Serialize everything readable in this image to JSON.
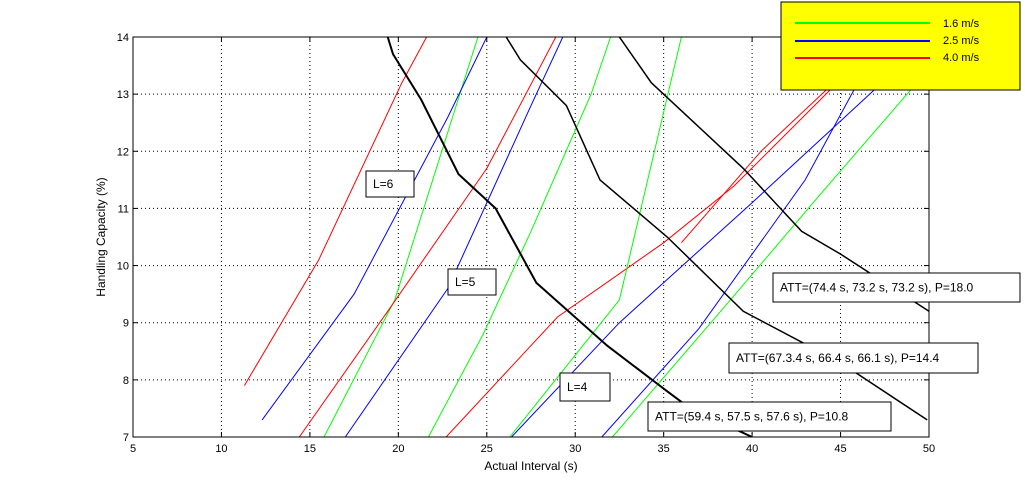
{
  "chart_data": {
    "type": "line",
    "title": "",
    "xlabel": "Actual Interval (s)",
    "ylabel": "Handling Capacity (%)",
    "xlim": [
      5,
      50
    ],
    "ylim": [
      7,
      14
    ],
    "xticks": [
      5,
      10,
      15,
      20,
      25,
      30,
      35,
      40,
      45,
      50
    ],
    "yticks": [
      7,
      8,
      9,
      10,
      11,
      12,
      13,
      14
    ],
    "grid": true,
    "legend": {
      "position": "top-right",
      "background": "#ffff00",
      "entries": [
        {
          "label": "1.6 m/s",
          "color": "#00ff00"
        },
        {
          "label": "2.5 m/s",
          "color": "#0000ff"
        },
        {
          "label": "4.0 m/s",
          "color": "#ff0000"
        }
      ]
    },
    "series": [
      {
        "speed": "1.6 m/s",
        "group": "L=6",
        "color": "#00ff00",
        "points": [
          [
            15.8,
            7.0
          ],
          [
            19.8,
            9.4
          ],
          [
            24.5,
            14.0
          ]
        ]
      },
      {
        "speed": "2.5 m/s",
        "group": "L=6",
        "color": "#0000ff",
        "points": [
          [
            12.3,
            7.3
          ],
          [
            17.5,
            9.5
          ],
          [
            22.8,
            12.6
          ],
          [
            25.0,
            14.0
          ]
        ]
      },
      {
        "speed": "4.0 m/s",
        "group": "L=6",
        "color": "#ff0000",
        "points": [
          [
            11.3,
            7.9
          ],
          [
            15.5,
            10.1
          ],
          [
            20.2,
            13.2
          ],
          [
            21.6,
            14.0
          ]
        ]
      },
      {
        "speed": "1.6 m/s",
        "group": "L=5",
        "color": "#00ff00",
        "points": [
          [
            21.7,
            7.0
          ],
          [
            24.8,
            8.8
          ],
          [
            27.5,
            10.6
          ],
          [
            30.9,
            13.0
          ],
          [
            32.0,
            14.0
          ]
        ]
      },
      {
        "speed": "2.5 m/s",
        "group": "L=5",
        "color": "#0000ff",
        "points": [
          [
            17.0,
            7.0
          ],
          [
            22.8,
            9.6
          ],
          [
            27.5,
            12.8
          ],
          [
            29.3,
            14.0
          ]
        ]
      },
      {
        "speed": "4.0 m/s",
        "group": "L=5",
        "color": "#ff0000",
        "points": [
          [
            14.4,
            7.0
          ],
          [
            19.4,
            9.2
          ],
          [
            25.0,
            11.7
          ],
          [
            28.9,
            14.0
          ]
        ]
      },
      {
        "speed": "1.6 m/s",
        "group": "L=4",
        "color": "#00ff00",
        "points": [
          [
            32.1,
            7.0
          ],
          [
            38.5,
            9.3
          ],
          [
            44.0,
            11.3
          ],
          [
            49.6,
            13.3
          ]
        ]
      },
      {
        "speed": "2.5 m/s",
        "group": "L=4",
        "color": "#0000ff",
        "points": [
          [
            26.4,
            7.0
          ],
          [
            32.5,
            9.0
          ],
          [
            40.0,
            11.1
          ],
          [
            47.0,
            13.1
          ]
        ]
      },
      {
        "speed": "4.0 m/s",
        "group": "L=4",
        "color": "#ff0000",
        "points": [
          [
            22.7,
            7.0
          ],
          [
            29.0,
            9.1
          ],
          [
            35.0,
            10.4
          ],
          [
            39.0,
            11.4
          ],
          [
            44.5,
            13.1
          ]
        ]
      },
      {
        "speed": "1.6 m/s",
        "group": "L=6",
        "color": "#00ff00",
        "points": [
          [
            26.3,
            7.0
          ],
          [
            32.5,
            9.4
          ],
          [
            36.0,
            14.0
          ]
        ]
      },
      {
        "speed": "2.5 m/s",
        "group": "L=4",
        "color": "#0000ff",
        "points": [
          [
            31.5,
            7.0
          ],
          [
            37.0,
            8.9
          ],
          [
            43.0,
            11.5
          ],
          [
            46.5,
            13.5
          ]
        ]
      },
      {
        "speed": "4.0 m/s",
        "group": "L=4",
        "color": "#ff0000",
        "points": [
          [
            36.0,
            10.4
          ],
          [
            40.5,
            12.0
          ],
          [
            46.0,
            13.6
          ]
        ]
      }
    ],
    "envelopes": [
      {
        "label": "L=6",
        "annotation": "ATT=(74.4 s, 73.2 s, 73.2 s), P=18.0",
        "color": "#000000",
        "points": [
          [
            19.4,
            14.0
          ],
          [
            19.7,
            13.7
          ],
          [
            21.3,
            12.9
          ],
          [
            23.4,
            11.6
          ],
          [
            25.5,
            11.0
          ],
          [
            27.8,
            9.7
          ],
          [
            31.8,
            8.6
          ],
          [
            35.2,
            7.8
          ],
          [
            36.5,
            7.5
          ],
          [
            40.0,
            7.0
          ]
        ]
      },
      {
        "label": "L=5",
        "annotation": "ATT=(67.3.4 s, 66.4 s, 66.1 s), P=14.4",
        "color": "#000000",
        "points": [
          [
            26.1,
            14.0
          ],
          [
            26.9,
            13.6
          ],
          [
            29.5,
            12.8
          ],
          [
            31.4,
            11.5
          ],
          [
            35.2,
            10.5
          ],
          [
            39.5,
            9.2
          ],
          [
            45.0,
            8.3
          ],
          [
            49.9,
            7.3
          ]
        ]
      },
      {
        "label": "L=4",
        "annotation": "ATT=(59.4 s, 57.5 s, 57.6 s),  P=10.8",
        "color": "#000000",
        "points": [
          [
            32.5,
            14.0
          ],
          [
            34.3,
            13.2
          ],
          [
            39.5,
            11.7
          ],
          [
            42.8,
            10.6
          ],
          [
            45.0,
            10.2
          ],
          [
            47.5,
            9.7
          ],
          [
            50.0,
            9.2
          ]
        ]
      }
    ],
    "labels": [
      {
        "text": "L=6"
      },
      {
        "text": "L=5"
      },
      {
        "text": "L=4"
      },
      {
        "text": "ATT=(74.4 s, 73.2 s, 73.2 s), P=18.0"
      },
      {
        "text": "ATT=(67.3.4 s, 66.4 s, 66.1 s), P=14.4"
      },
      {
        "text": "ATT=(59.4 s, 57.5 s, 57.6 s),  P=10.8"
      }
    ]
  }
}
